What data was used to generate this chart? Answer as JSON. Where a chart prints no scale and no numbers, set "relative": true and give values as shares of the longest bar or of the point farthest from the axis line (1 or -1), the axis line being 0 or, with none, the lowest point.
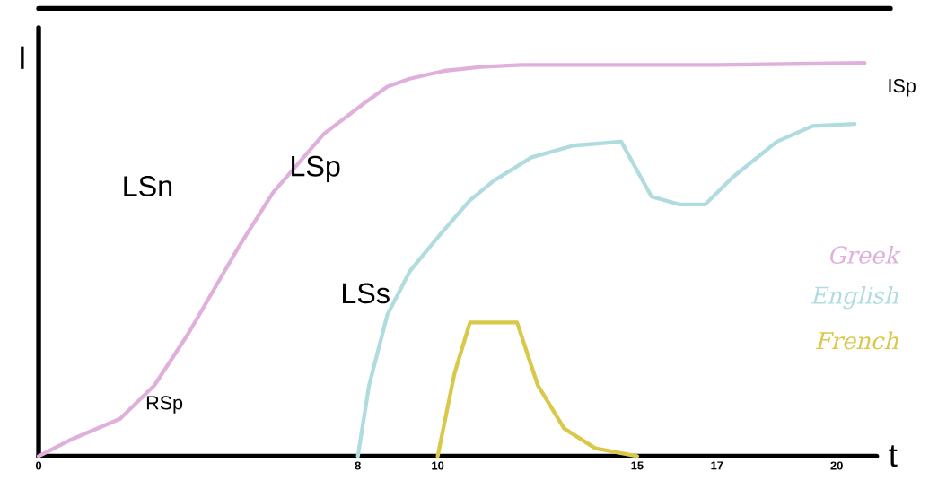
{
  "chart_data": {
    "type": "line",
    "relative": true,
    "xlabel": "t",
    "ylabel": "I",
    "xlim": [
      0,
      21
    ],
    "xticks": [
      0,
      8,
      10,
      15,
      17,
      20
    ],
    "legend": "right",
    "grid": false,
    "marker": "none",
    "line_style": "solid",
    "series": [
      {
        "name": "Greek",
        "color": "#e0b0dc",
        "x": [
          0,
          0.77,
          2.04,
          2.9,
          3.74,
          5.0,
          5.87,
          7.15,
          8.19,
          8.74,
          9.3,
          10.16,
          11.08,
          12.1,
          13.4,
          15,
          17,
          20.7
        ],
        "values": [
          0,
          0.04,
          0.095,
          0.18,
          0.31,
          0.53,
          0.67,
          0.82,
          0.9,
          0.94,
          0.96,
          0.98,
          0.99,
          0.995,
          0.995,
          0.995,
          0.995,
          1
        ]
      },
      {
        "name": "English",
        "color": "#b0dce0",
        "x": [
          8,
          8.28,
          8.74,
          9.3,
          10.03,
          10.8,
          11.4,
          12.35,
          13.4,
          14.6,
          14.87,
          15.36,
          16.07,
          16.7,
          17.4,
          18.5,
          19.4,
          20.45
        ],
        "values": [
          0,
          0.18,
          0.36,
          0.47,
          0.56,
          0.65,
          0.7,
          0.76,
          0.79,
          0.8,
          0.75,
          0.66,
          0.64,
          0.64,
          0.71,
          0.8,
          0.84,
          0.845
        ]
      },
      {
        "name": "French",
        "color": "#d9c84a",
        "x": [
          10,
          10.42,
          10.81,
          11.47,
          11.99,
          12.51,
          13.17,
          13.95,
          15
        ],
        "values": [
          0,
          0.21,
          0.34,
          0.34,
          0.34,
          0.18,
          0.07,
          0.02,
          0
        ]
      }
    ],
    "annotations": [
      "LSn",
      "LSp",
      "LSs",
      "ISp",
      "RSp"
    ]
  }
}
